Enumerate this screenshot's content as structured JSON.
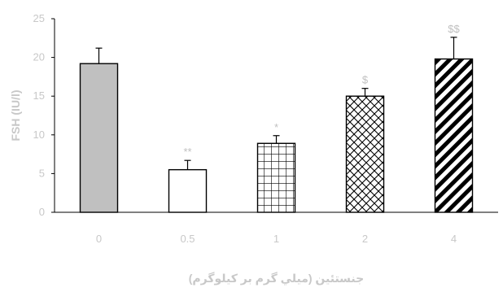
{
  "chart_data": {
    "type": "bar",
    "categories": [
      "0",
      "0.5",
      "1",
      "2",
      "4"
    ],
    "values": [
      19.2,
      5.5,
      8.9,
      15.0,
      19.8
    ],
    "errors": [
      2.0,
      1.2,
      1.0,
      1.0,
      2.8
    ],
    "annotations": [
      "",
      "**",
      "*",
      "$",
      "$$"
    ],
    "patterns": [
      "solid-gray",
      "empty",
      "grid",
      "crosshatch",
      "diagonal"
    ],
    "xlabel": "جنستئين (ميلي گرم بر کيلوگرم)",
    "ylabel": "FSH (IU/l)",
    "ylim": [
      0,
      25
    ],
    "yticks": [
      0,
      5,
      10,
      15,
      20,
      25
    ],
    "grid": false,
    "colors": {
      "bar_stroke": "#000000",
      "gray_fill": "#c0c0c0",
      "axis": "#000000",
      "tick_text": "#c8c8c8"
    }
  }
}
